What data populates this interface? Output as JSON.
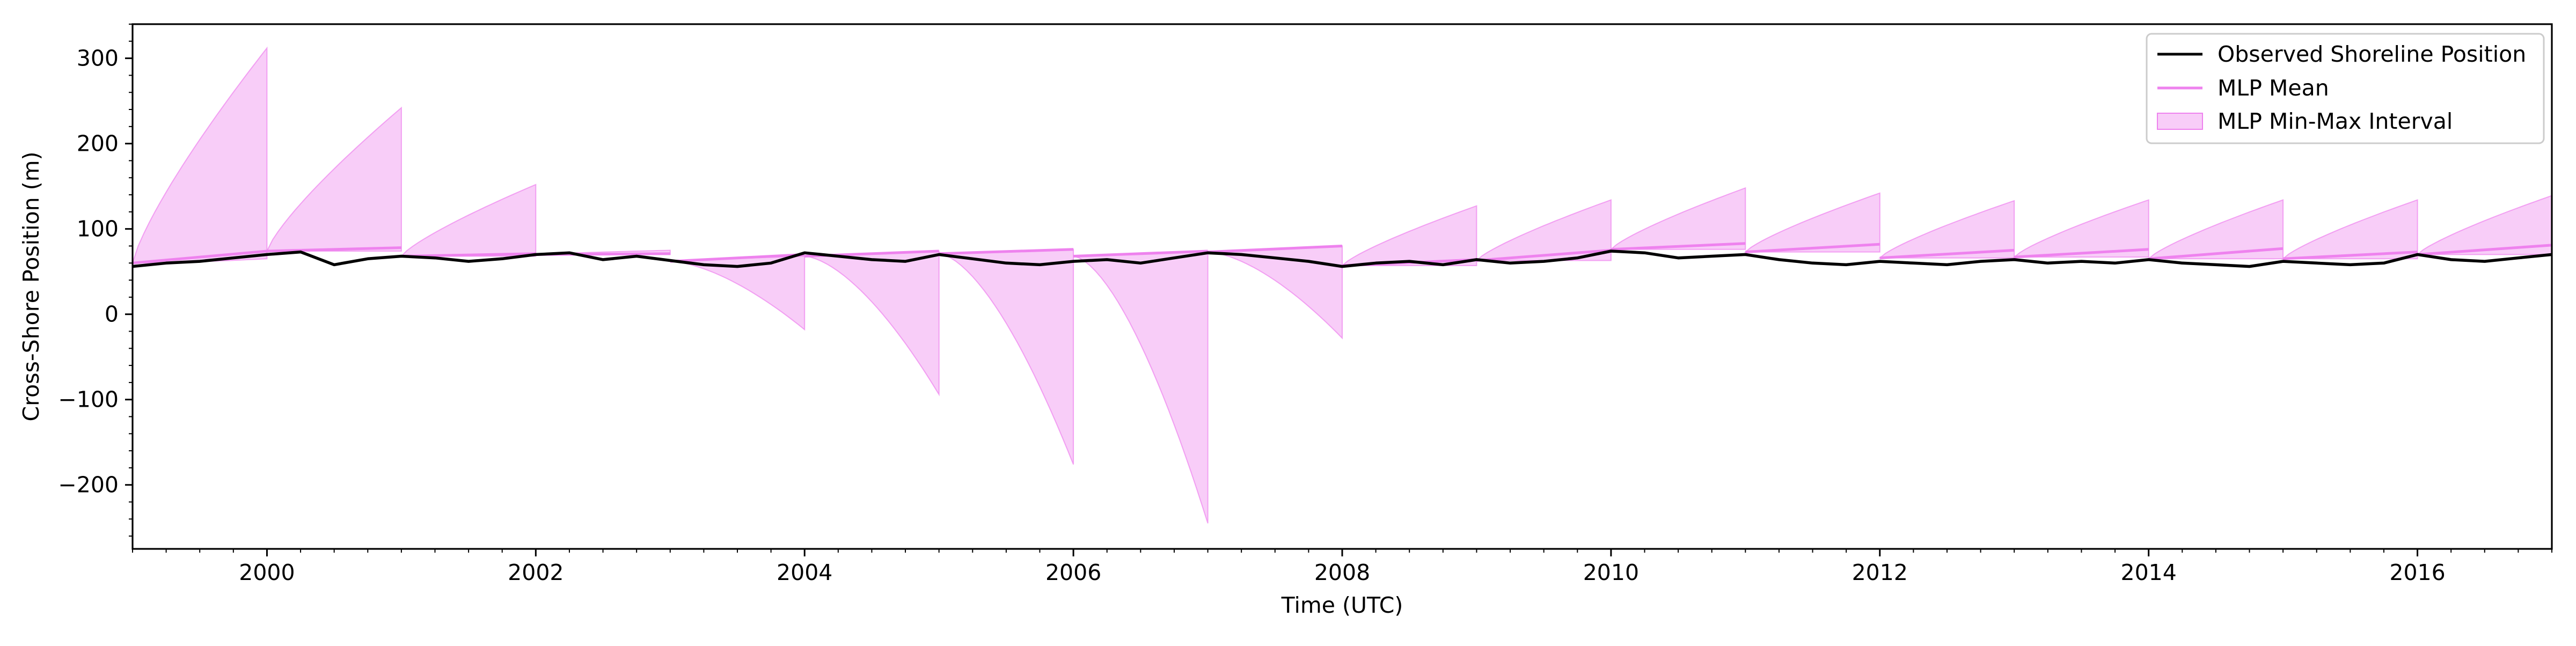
{
  "chart_data": {
    "type": "line",
    "xlabel": "Time (UTC)",
    "ylabel": "Cross-Shore Position (m)",
    "xlim": [
      "1999-01-01",
      "2017-01-01"
    ],
    "ylim": [
      -275,
      340
    ],
    "x_ticks": [
      "2000",
      "2002",
      "2004",
      "2006",
      "2008",
      "2010",
      "2012",
      "2014",
      "2016"
    ],
    "y_ticks": [
      "300",
      "200",
      "100",
      "0",
      "−100",
      "−200"
    ],
    "grid": false,
    "legend_position": "top-right",
    "colors": {
      "observed": "#000000",
      "mlp_mean": "#ee82ee",
      "band_fill": "#ee82ee",
      "band_edge": "#ee82ee"
    },
    "series": [
      {
        "name": "Observed Shoreline Position",
        "x": [
          "1999-01",
          "1999-04",
          "1999-07",
          "1999-10",
          "2000-01",
          "2000-04",
          "2000-07",
          "2000-10",
          "2001-01",
          "2001-04",
          "2001-07",
          "2001-10",
          "2002-01",
          "2002-04",
          "2002-07",
          "2002-10",
          "2003-01",
          "2003-04",
          "2003-07",
          "2003-10",
          "2004-01",
          "2004-04",
          "2004-07",
          "2004-10",
          "2005-01",
          "2005-04",
          "2005-07",
          "2005-10",
          "2006-01",
          "2006-04",
          "2006-07",
          "2006-10",
          "2007-01",
          "2007-04",
          "2007-07",
          "2007-10",
          "2008-01",
          "2008-04",
          "2008-07",
          "2008-10",
          "2009-01",
          "2009-04",
          "2009-07",
          "2009-10",
          "2010-01",
          "2010-04",
          "2010-07",
          "2010-10",
          "2011-01",
          "2011-04",
          "2011-07",
          "2011-10",
          "2012-01",
          "2012-04",
          "2012-07",
          "2012-10",
          "2013-01",
          "2013-04",
          "2013-07",
          "2013-10",
          "2014-01",
          "2014-04",
          "2014-07",
          "2014-10",
          "2015-01",
          "2015-04",
          "2015-07",
          "2015-10",
          "2016-01",
          "2016-04",
          "2016-07",
          "2016-10",
          "2017-01"
        ],
        "values": [
          56,
          60,
          62,
          66,
          70,
          73,
          58,
          65,
          68,
          66,
          62,
          65,
          70,
          72,
          64,
          68,
          63,
          58,
          56,
          60,
          72,
          68,
          64,
          62,
          70,
          65,
          60,
          58,
          62,
          64,
          60,
          66,
          72,
          70,
          66,
          62,
          56,
          60,
          62,
          58,
          64,
          60,
          62,
          66,
          74,
          72,
          66,
          68,
          70,
          64,
          60,
          58,
          62,
          60,
          58,
          62,
          64,
          60,
          62,
          60,
          64,
          60,
          58,
          56,
          62,
          60,
          58,
          60,
          70,
          64,
          62,
          66,
          70
        ]
      },
      {
        "name": "MLP Mean",
        "segments": [
          {
            "x": [
              "1999-01-01",
              "2000-01-01"
            ],
            "y": [
              60,
              74
            ]
          },
          {
            "x": [
              "2000-01-01",
              "2001-01-01"
            ],
            "y": [
              74,
              78
            ]
          },
          {
            "x": [
              "2001-01-01",
              "2002-01-01"
            ],
            "y": [
              68,
              71
            ]
          },
          {
            "x": [
              "2002-01-01",
              "2003-01-01"
            ],
            "y": [
              70,
              71
            ]
          },
          {
            "x": [
              "2003-01-01",
              "2004-01-01"
            ],
            "y": [
              62,
              70
            ]
          },
          {
            "x": [
              "2004-01-01",
              "2005-01-01"
            ],
            "y": [
              68,
              74
            ]
          },
          {
            "x": [
              "2005-01-01",
              "2006-01-01"
            ],
            "y": [
              71,
              76
            ]
          },
          {
            "x": [
              "2006-01-01",
              "2007-01-01"
            ],
            "y": [
              68,
              74
            ]
          },
          {
            "x": [
              "2007-01-01",
              "2008-01-01"
            ],
            "y": [
              73,
              80
            ]
          },
          {
            "x": [
              "2008-01-01",
              "2009-01-01"
            ],
            "y": [
              57,
              64
            ]
          },
          {
            "x": [
              "2009-01-01",
              "2010-01-01"
            ],
            "y": [
              63,
              75
            ]
          },
          {
            "x": [
              "2010-01-01",
              "2011-01-01"
            ],
            "y": [
              76,
              83
            ]
          },
          {
            "x": [
              "2011-01-01",
              "2012-01-01"
            ],
            "y": [
              73,
              82
            ]
          },
          {
            "x": [
              "2012-01-01",
              "2013-01-01"
            ],
            "y": [
              66,
              75
            ]
          },
          {
            "x": [
              "2013-01-01",
              "2014-01-01"
            ],
            "y": [
              67,
              76
            ]
          },
          {
            "x": [
              "2014-01-01",
              "2015-01-01"
            ],
            "y": [
              65,
              77
            ]
          },
          {
            "x": [
              "2015-01-01",
              "2016-01-01"
            ],
            "y": [
              65,
              73
            ]
          },
          {
            "x": [
              "2016-01-01",
              "2017-01-01"
            ],
            "y": [
              70,
              81
            ]
          }
        ]
      },
      {
        "name": "MLP Min-Max Interval",
        "segments": [
          {
            "start": "1999-01-01",
            "end": "2000-01-01",
            "y_start": 60,
            "max_end": 312,
            "min_end": 65
          },
          {
            "start": "2000-01-01",
            "end": "2001-01-01",
            "y_start": 74,
            "max_end": 242,
            "min_end": 74
          },
          {
            "start": "2001-01-01",
            "end": "2002-01-01",
            "y_start": 68,
            "max_end": 152,
            "min_end": 68
          },
          {
            "start": "2002-01-01",
            "end": "2003-01-01",
            "y_start": 70,
            "max_end": 75,
            "min_end": 70
          },
          {
            "start": "2003-01-01",
            "end": "2004-01-01",
            "y_start": 62,
            "max_end": 68,
            "min_end": -18
          },
          {
            "start": "2004-01-01",
            "end": "2005-01-01",
            "y_start": 68,
            "max_end": 74,
            "min_end": -94
          },
          {
            "start": "2005-01-01",
            "end": "2006-01-01",
            "y_start": 71,
            "max_end": 76,
            "min_end": -176
          },
          {
            "start": "2006-01-01",
            "end": "2007-01-01",
            "y_start": 68,
            "max_end": 74,
            "min_end": -245
          },
          {
            "start": "2007-01-01",
            "end": "2008-01-01",
            "y_start": 73,
            "max_end": 80,
            "min_end": -28
          },
          {
            "start": "2008-01-01",
            "end": "2009-01-01",
            "y_start": 57,
            "max_end": 127,
            "min_end": 57
          },
          {
            "start": "2009-01-01",
            "end": "2010-01-01",
            "y_start": 63,
            "max_end": 134,
            "min_end": 63
          },
          {
            "start": "2010-01-01",
            "end": "2011-01-01",
            "y_start": 76,
            "max_end": 148,
            "min_end": 76
          },
          {
            "start": "2011-01-01",
            "end": "2012-01-01",
            "y_start": 73,
            "max_end": 142,
            "min_end": 73
          },
          {
            "start": "2012-01-01",
            "end": "2013-01-01",
            "y_start": 66,
            "max_end": 133,
            "min_end": 66
          },
          {
            "start": "2013-01-01",
            "end": "2014-01-01",
            "y_start": 67,
            "max_end": 134,
            "min_end": 67
          },
          {
            "start": "2014-01-01",
            "end": "2015-01-01",
            "y_start": 65,
            "max_end": 134,
            "min_end": 65
          },
          {
            "start": "2015-01-01",
            "end": "2016-01-01",
            "y_start": 65,
            "max_end": 134,
            "min_end": 65
          },
          {
            "start": "2016-01-01",
            "end": "2017-01-01",
            "y_start": 70,
            "max_end": 139,
            "min_end": 70
          }
        ]
      }
    ]
  }
}
